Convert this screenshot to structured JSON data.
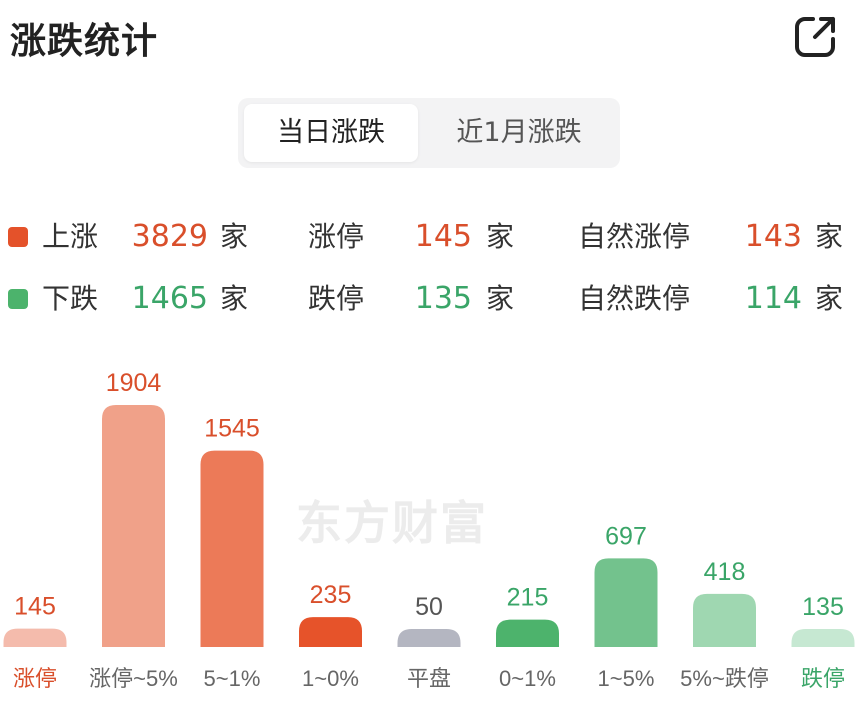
{
  "header": {
    "title": "涨跌统计",
    "share_icon": "share-external-icon"
  },
  "tabs": [
    {
      "label": "当日涨跌",
      "active": true
    },
    {
      "label": "近1月涨跌",
      "active": false
    }
  ],
  "colors": {
    "up": "#d94f2b",
    "down": "#3aa568",
    "flat": "#555555",
    "up_marker": "#e4522a",
    "down_marker": "#4cb36c"
  },
  "stats": {
    "up": {
      "label": "上涨",
      "value": "3829",
      "unit": "家",
      "limit_label": "涨停",
      "limit_value": "145",
      "limit_unit": "家",
      "natural_label": "自然涨停",
      "natural_value": "143",
      "natural_unit": "家"
    },
    "down": {
      "label": "下跌",
      "value": "1465",
      "unit": "家",
      "limit_label": "跌停",
      "limit_value": "135",
      "limit_unit": "家",
      "natural_label": "自然跌停",
      "natural_value": "114",
      "natural_unit": "家"
    }
  },
  "watermark": "东方财富",
  "chart_data": {
    "type": "bar",
    "categories": [
      "涨停",
      "涨停~5%",
      "5~1%",
      "1~0%",
      "平盘",
      "0~1%",
      "1~5%",
      "5%~跌停",
      "跌停"
    ],
    "values": [
      145,
      1904,
      1545,
      235,
      50,
      215,
      697,
      418,
      135
    ],
    "bar_colors": [
      "#f4bbac",
      "#f0a189",
      "#ec7a58",
      "#e6532a",
      "#b4b6c1",
      "#4db36c",
      "#73c28d",
      "#9fd7b1",
      "#c6e8d2"
    ],
    "label_colors": [
      "#d94f2b",
      "#d94f2b",
      "#d94f2b",
      "#d94f2b",
      "#555555",
      "#3aa568",
      "#3aa568",
      "#3aa568",
      "#3aa568"
    ],
    "category_colors": [
      "#d94f2b",
      "#666666",
      "#666666",
      "#666666",
      "#666666",
      "#666666",
      "#666666",
      "#666666",
      "#3aa568"
    ],
    "grid": false
  }
}
